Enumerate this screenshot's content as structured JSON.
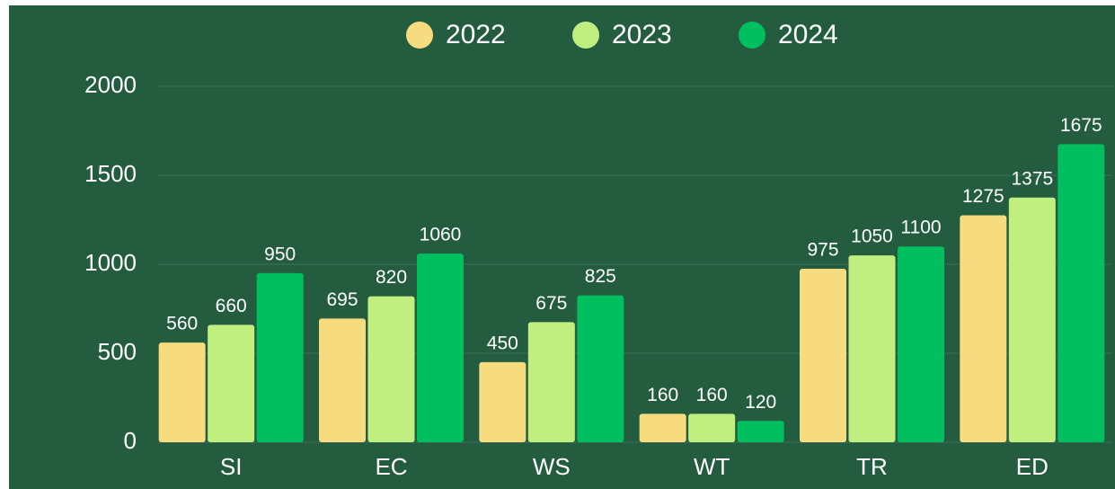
{
  "chart_data": {
    "type": "bar",
    "categories": [
      "SI",
      "EC",
      "WS",
      "WT",
      "TR",
      "ED"
    ],
    "series": [
      {
        "name": "2022",
        "color": "#f6dc7e",
        "values": [
          560,
          695,
          450,
          160,
          975,
          1275
        ]
      },
      {
        "name": "2023",
        "color": "#c0ef80",
        "values": [
          660,
          820,
          675,
          160,
          1050,
          1375
        ]
      },
      {
        "name": "2024",
        "color": "#00bf5f",
        "values": [
          950,
          1060,
          825,
          120,
          1100,
          1675
        ]
      }
    ],
    "ylim": [
      0,
      2000
    ],
    "yticks": [
      0,
      500,
      1000,
      1500,
      2000
    ],
    "grid": true,
    "legend": "top"
  }
}
